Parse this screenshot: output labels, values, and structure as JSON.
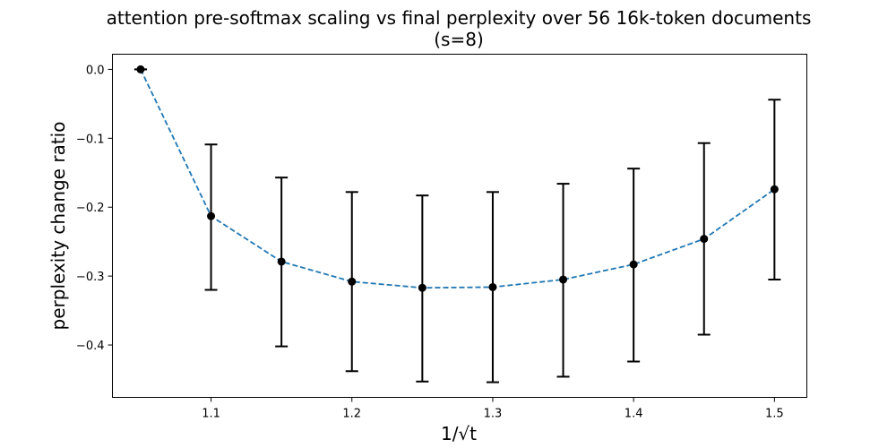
{
  "chart_data": {
    "type": "line",
    "title_line1": "attention pre-softmax scaling vs final perplexity over 56 16k-token documents",
    "title_line2": "(s=8)",
    "xlabel": "1/√t",
    "ylabel": "perplexity change ratio",
    "xlim": [
      1.03,
      1.523
    ],
    "ylim": [
      -0.476,
      0.022
    ],
    "x_ticks": [
      {
        "value": 1.1,
        "label": "1.1"
      },
      {
        "value": 1.2,
        "label": "1.2"
      },
      {
        "value": 1.3,
        "label": "1.3"
      },
      {
        "value": 1.4,
        "label": "1.4"
      },
      {
        "value": 1.5,
        "label": "1.5"
      }
    ],
    "y_ticks": [
      {
        "value": 0.0,
        "label": "0.0"
      },
      {
        "value": -0.1,
        "label": "−0.1"
      },
      {
        "value": -0.2,
        "label": "−0.2"
      },
      {
        "value": -0.3,
        "label": "−0.3"
      },
      {
        "value": -0.4,
        "label": "−0.4"
      }
    ],
    "grid": false,
    "series": [
      {
        "style": "dashed-line-with-errorbars",
        "x": [
          1.05,
          1.1,
          1.15,
          1.2,
          1.25,
          1.3,
          1.35,
          1.4,
          1.45,
          1.5
        ],
        "y": [
          0.0,
          -0.213,
          -0.279,
          -0.308,
          -0.317,
          -0.316,
          -0.305,
          -0.283,
          -0.246,
          -0.174
        ],
        "err_low": [
          0.0,
          -0.32,
          -0.402,
          -0.438,
          -0.453,
          -0.454,
          -0.446,
          -0.424,
          -0.385,
          -0.305
        ],
        "err_high": [
          0.0,
          -0.109,
          -0.157,
          -0.178,
          -0.183,
          -0.178,
          -0.166,
          -0.144,
          -0.107,
          -0.044
        ]
      }
    ],
    "colors": {
      "line": "#1f77b4",
      "marker": "#000000",
      "errorbar": "#000000",
      "axes": "#000000",
      "background": "#ffffff"
    }
  }
}
